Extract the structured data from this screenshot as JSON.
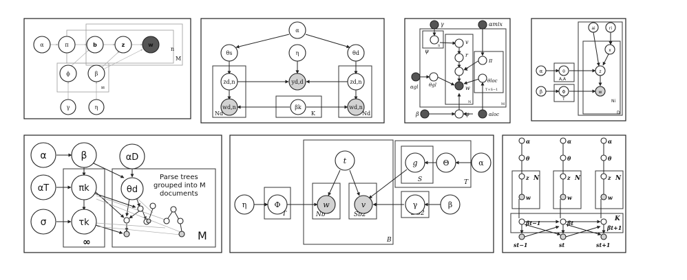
{
  "p1": {
    "nodes": [
      "α",
      "π",
      "b",
      "z",
      "w",
      "ϕ",
      "β",
      "γ",
      "η"
    ],
    "plates": [
      "n",
      "M",
      "∞"
    ]
  },
  "p2": {
    "nodes": [
      "α",
      "θs",
      "η",
      "θd",
      "zd,n",
      "yd,d",
      "zd,n",
      "wd,n",
      "βk",
      "wd,n"
    ],
    "plates": [
      "Nd",
      "K",
      "Nd"
    ]
  },
  "p3": {
    "nodes": [
      "γ",
      "αmix",
      "ψ",
      "v",
      "r",
      "z",
      "w",
      "π",
      "θloc",
      "αgl",
      "θgl",
      "β",
      "φ",
      "αloc"
    ],
    "plates": [
      "S",
      "N",
      "M",
      "T+S−1"
    ]
  },
  "p4": {
    "nodes": [
      "ai",
      "ri",
      "x",
      "α",
      "θ",
      "z",
      "β",
      "Φ",
      "w"
    ],
    "plates": [
      "A,A",
      "T",
      "Ni",
      "D"
    ]
  },
  "p5": {
    "nodes": [
      "α",
      "β",
      "αD",
      "αT",
      "πk",
      "θd",
      "σ",
      "τk"
    ],
    "plates": [
      "∞",
      "M"
    ],
    "annotation": [
      "Parse trees",
      "grouped into M",
      "documents"
    ]
  },
  "p6": {
    "nodes": [
      "η",
      "Φ",
      "t",
      "w",
      "v",
      "g",
      "Θ",
      "α",
      "γ",
      "β"
    ],
    "plates": [
      "T",
      "Nb",
      "Sb2",
      "S",
      "T",
      "BG2",
      "B"
    ]
  },
  "p7": {
    "nodes": [
      "α",
      "θ",
      "z",
      "w",
      "βt−1",
      "βt",
      "βt+1",
      "st−1",
      "st",
      "st+1"
    ],
    "plates": [
      "N",
      "N",
      "N",
      "K"
    ]
  }
}
